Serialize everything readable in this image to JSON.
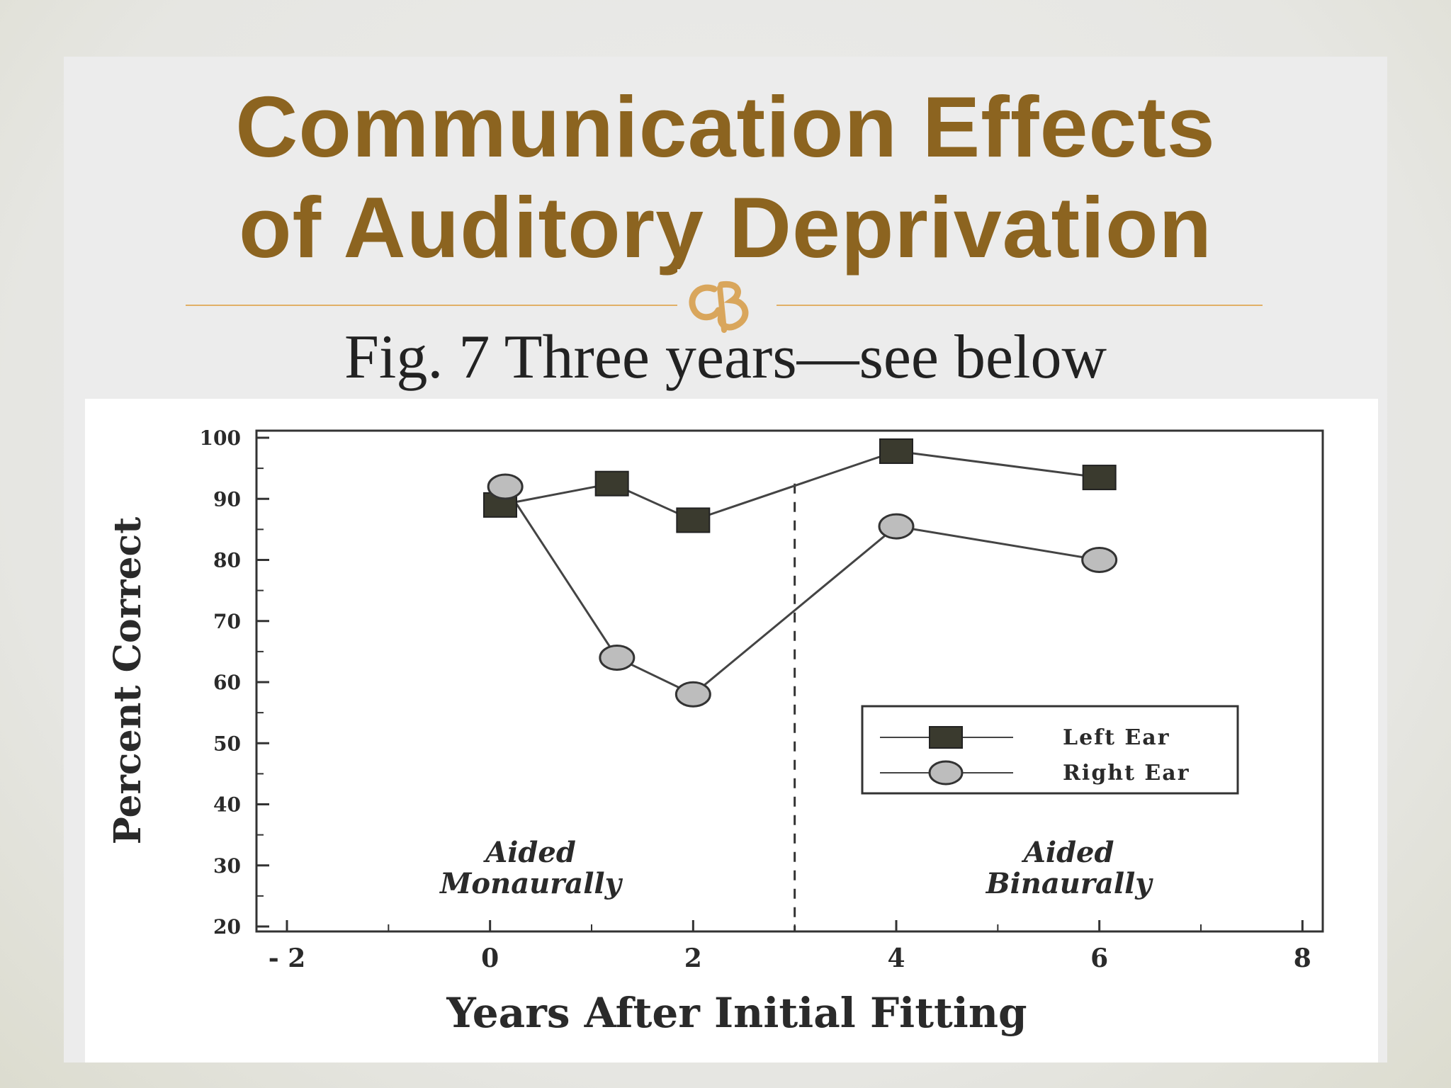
{
  "slide": {
    "title_line1": "Communication Effects",
    "title_line2": "of Auditory Deprivation",
    "subtitle": "Fig. 7  Three years—see below",
    "accent_color": "#8c6420",
    "divider_color": "#e1b066",
    "divider_icon": "flourish-icon"
  },
  "chart_data": {
    "type": "line",
    "xlabel": "Years  After  Initial  Fitting",
    "ylabel": "Percent  Correct",
    "xlim": [
      -2.3,
      8.2
    ],
    "ylim": [
      20,
      100
    ],
    "x_ticks": [
      -2,
      0,
      2,
      4,
      6,
      8
    ],
    "x_tick_labels": [
      "- 2",
      "0",
      "2",
      "4",
      "6",
      "8"
    ],
    "y_ticks": [
      20,
      30,
      40,
      50,
      60,
      70,
      80,
      90,
      100
    ],
    "y_tick_labels": [
      "20",
      "30",
      "40",
      "50",
      "60",
      "70",
      "80",
      "90",
      "100"
    ],
    "divider_x": 3,
    "series": [
      {
        "name": "Left Ear",
        "marker": "square",
        "points": [
          [
            0.1,
            89
          ],
          [
            1.2,
            92.5
          ],
          [
            2.0,
            86.5
          ],
          [
            4.0,
            97.8
          ],
          [
            6.0,
            93.5
          ]
        ]
      },
      {
        "name": "Right Ear",
        "marker": "circle",
        "points": [
          [
            0.15,
            92
          ],
          [
            1.25,
            64
          ],
          [
            2.0,
            58
          ],
          [
            4.0,
            85.5
          ],
          [
            6.0,
            80
          ]
        ]
      }
    ],
    "annotations": [
      {
        "line1": "Aided",
        "line2": "Monaurally",
        "x": 0.4,
        "y": 28
      },
      {
        "line1": "Aided",
        "line2": "Binaurally",
        "x": 5.7,
        "y": 28
      }
    ],
    "legend_position": "right-middle",
    "grid": false
  }
}
